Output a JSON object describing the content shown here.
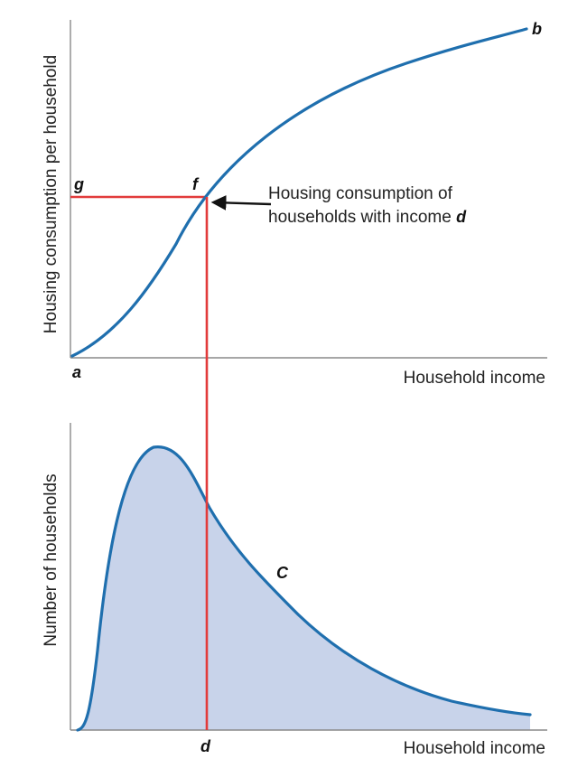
{
  "colors": {
    "curve": "#1f6fae",
    "fill": "#c8d3ea",
    "guide": "#e23b3b",
    "axis": "#8a8a8a",
    "arrow": "#111111"
  },
  "top_panel": {
    "y_axis_title": "Housing consumption per household",
    "x_axis_title": "Household income",
    "point_a": "a",
    "point_b": "b",
    "point_f": "f",
    "point_g": "g"
  },
  "annotation": {
    "line1": "Housing consumption of",
    "line2_prefix": "households with income ",
    "line2_var": "d"
  },
  "bottom_panel": {
    "y_axis_title": "Number of households",
    "x_axis_title": "Household income",
    "curve_label": "C",
    "point_d": "d"
  }
}
